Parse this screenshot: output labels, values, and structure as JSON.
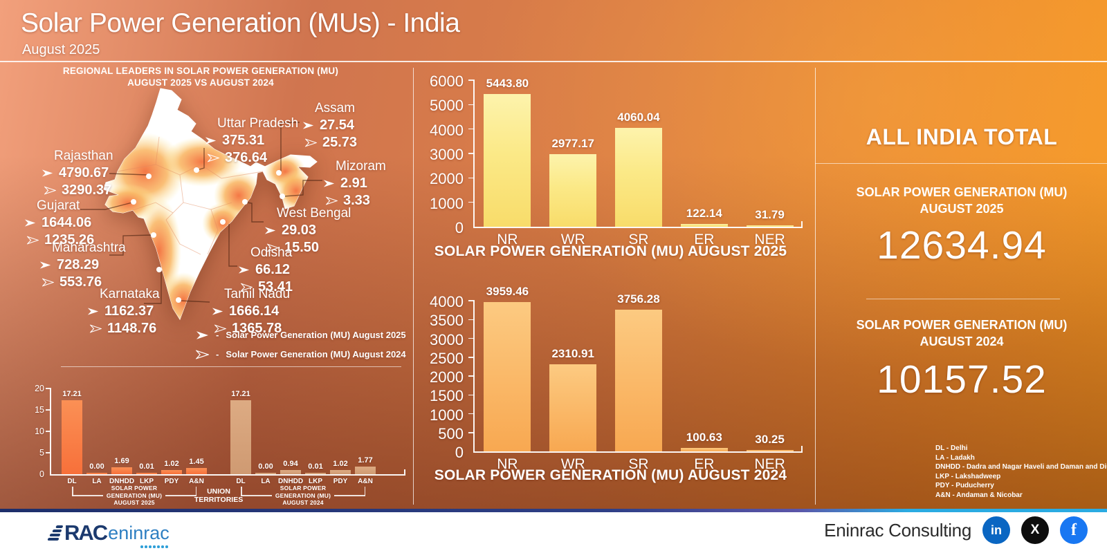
{
  "header": {
    "title": "Solar Power Generation (MUs) - India",
    "subtitle": "August 2025"
  },
  "map_section": {
    "title": "REGIONAL LEADERS IN SOLAR POWER GENERATION (MU)",
    "title2": "AUGUST 2025 VS AUGUST 2024",
    "marker_2025": "arrow-solid-icon",
    "marker_2024": "arrow-outline-icon",
    "legend": [
      {
        "icon": "arrow-solid-icon",
        "dash": "-",
        "label": "Solar Power Generation (MU) August 2025"
      },
      {
        "icon": "arrow-outline-icon",
        "dash": "-",
        "label": "Solar Power Generation (MU) August 2024"
      }
    ],
    "states": [
      {
        "name": "Rajasthan",
        "v2025": "4790.67",
        "v2024": "3290.37"
      },
      {
        "name": "Gujarat",
        "v2025": "1644.06",
        "v2024": "1235.26"
      },
      {
        "name": "Maharashtra",
        "v2025": "728.29",
        "v2024": "553.76"
      },
      {
        "name": "Karnataka",
        "v2025": "1162.37",
        "v2024": "1148.76"
      },
      {
        "name": "Uttar Pradesh",
        "v2025": "375.31",
        "v2024": "376.64"
      },
      {
        "name": "Assam",
        "v2025": "27.54",
        "v2024": "25.73"
      },
      {
        "name": "Mizoram",
        "v2025": "2.91",
        "v2024": "3.33"
      },
      {
        "name": "West Bengal",
        "v2025": "29.03",
        "v2024": "15.50"
      },
      {
        "name": "Odisha",
        "v2025": "66.12",
        "v2024": "53.41"
      },
      {
        "name": "Tamil Nadu",
        "v2025": "1666.14",
        "v2024": "1365.78"
      }
    ]
  },
  "chart_data": [
    {
      "id": "regional_2025",
      "type": "bar",
      "title": "SOLAR POWER GENERATION (MU) AUGUST 2025",
      "categories": [
        "NR",
        "WR",
        "SR",
        "ER",
        "NER"
      ],
      "values": [
        5443.8,
        2977.17,
        4060.04,
        122.14,
        31.79
      ],
      "ylim": [
        0,
        6000
      ],
      "ystep": 1000,
      "grid": false,
      "bar_color": "#fbe987"
    },
    {
      "id": "regional_2024",
      "type": "bar",
      "title": "SOLAR POWER GENERATION (MU) AUGUST 2024",
      "categories": [
        "NR",
        "WR",
        "SR",
        "ER",
        "NER"
      ],
      "values": [
        3959.46,
        2310.91,
        3756.28,
        100.63,
        30.25
      ],
      "ylim": [
        0,
        4000
      ],
      "ystep": 500,
      "grid": false,
      "bar_color": "#f8a851"
    },
    {
      "id": "union_territories",
      "type": "bar",
      "categories": [
        "DL",
        "LA",
        "DNHDD",
        "LKP",
        "PDY",
        "A&N"
      ],
      "ylim": [
        0,
        20
      ],
      "ystep": 5,
      "grid": false,
      "series": [
        {
          "name": "SOLAR POWER GENERATION (MU) AUGUST 2025",
          "values": [
            17.21,
            0.0,
            1.69,
            0.01,
            1.02,
            1.45
          ],
          "bar_color": "#f7703a"
        },
        {
          "name": "SOLAR POWER GENERATION (MU) AUGUST 2024",
          "values": [
            17.21,
            0.0,
            0.94,
            0.01,
            1.02,
            1.77
          ],
          "bar_color": "#cf9a72"
        }
      ],
      "group_label_l1": "UNION",
      "group_label_l2": "TERRITORIES",
      "bracket_2025": [
        "SOLAR POWER",
        "GENERATION (MU)",
        "AUGUST 2025"
      ],
      "bracket_2024": [
        "SOLAR POWER",
        "GENERATION (MU)",
        "AUGUST 2024"
      ]
    }
  ],
  "totals": {
    "heading": "ALL INDIA TOTAL",
    "label_2025_l1": "SOLAR POWER GENERATION (MU)",
    "label_2025_l2": "AUGUST 2025",
    "value_2025": "12634.94",
    "label_2024_l1": "SOLAR POWER GENERATION (MU)",
    "label_2024_l2": "AUGUST 2024",
    "value_2024": "10157.52"
  },
  "abbreviations": [
    "DL - Delhi",
    "LA - Ladakh",
    "DNHDD - Dadra and Nagar Haveli and Daman and Diu",
    "LKP - Lakshadweep",
    "PDY - Puducherry",
    "A&N - Andaman & Nicobar"
  ],
  "footer": {
    "brand": "Eninrac Consulting",
    "logo_main": "RAC",
    "logo_sub": "eninrac",
    "social": [
      "linkedin-icon",
      "x-icon",
      "facebook-icon"
    ]
  },
  "colors": {
    "bar_yellow": "#fbe987",
    "bar_orange": "#f8a851",
    "bar_bright_orange": "#f7703a",
    "bar_tan": "#cf9a72",
    "linkedin": "#0a66c2",
    "x": "#0d0d0d",
    "facebook": "#1877f2",
    "footer_line_left": "#1d2e6a",
    "footer_line_right": "#2aabe2"
  }
}
